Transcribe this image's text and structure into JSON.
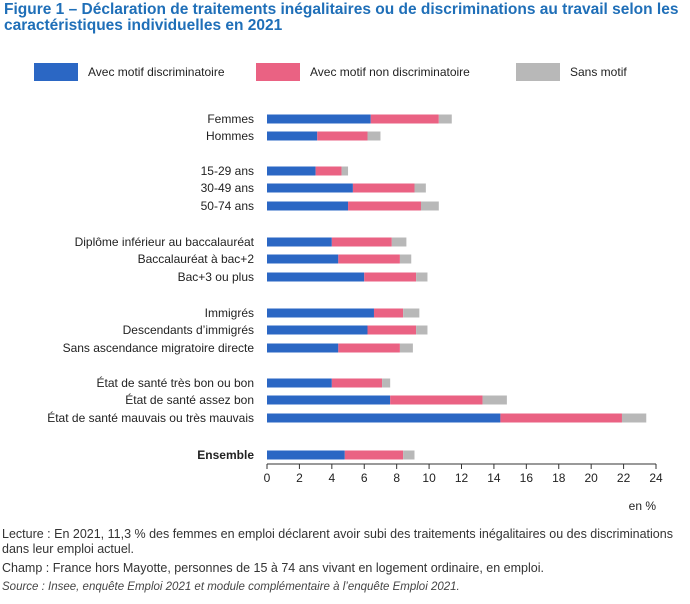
{
  "title": "Figure 1 – Déclaration de traitements inégalitaires ou de discriminations au travail selon les caractéristiques individuelles en 2021",
  "legend": [
    {
      "label": "Avec motif discriminatoire",
      "color": "#2b67c4"
    },
    {
      "label": "Avec motif non discriminatoire",
      "color": "#ea6283"
    },
    {
      "label": "Sans motif",
      "color": "#b8b8b8"
    }
  ],
  "chart_data": {
    "type": "bar",
    "orientation": "horizontal",
    "stacked": true,
    "categories": [
      "Femmes",
      "Hommes",
      "15-29 ans",
      "30-49 ans",
      "50-74 ans",
      "Diplôme inférieur au baccalauréat",
      "Baccalauréat à bac+2",
      "Bac+3 ou plus",
      "Immigrés",
      "Descendants d’immigrés",
      "Sans ascendance migratoire directe",
      "État de santé très bon ou bon",
      "État de santé assez bon",
      "État de santé mauvais ou très mauvais",
      "Ensemble"
    ],
    "bold_categories": [
      "Ensemble"
    ],
    "series": [
      {
        "name": "Avec motif discriminatoire",
        "color": "#2b67c4",
        "values": [
          6.4,
          3.1,
          3.0,
          5.3,
          5.0,
          4.0,
          4.4,
          6.0,
          6.6,
          6.2,
          4.4,
          4.0,
          7.6,
          14.4,
          4.8
        ]
      },
      {
        "name": "Avec motif non discriminatoire",
        "color": "#ea6283",
        "values": [
          4.2,
          3.1,
          1.6,
          3.8,
          4.5,
          3.7,
          3.8,
          3.2,
          1.8,
          3.0,
          3.8,
          3.1,
          5.7,
          7.5,
          3.6
        ]
      },
      {
        "name": "Sans motif",
        "color": "#b8b8b8",
        "values": [
          0.8,
          0.8,
          0.4,
          0.7,
          1.1,
          0.9,
          0.7,
          0.7,
          1.0,
          0.7,
          0.8,
          0.5,
          1.5,
          1.5,
          0.7
        ]
      }
    ],
    "xlim": [
      0,
      24
    ],
    "xticks": [
      "0",
      "2",
      "4",
      "6",
      "8",
      "10",
      "12",
      "14",
      "16",
      "18",
      "20",
      "22",
      "24"
    ],
    "xunit": "en %",
    "grid": false,
    "legend_position": "top"
  },
  "notes": {
    "lecture": "Lecture : En 2021, 11,3 % des femmes en emploi déclarent avoir subi des traitements inégalitaires ou des discriminations dans leur emploi actuel.",
    "champ": "Champ : France hors Mayotte, personnes de 15 à 74 ans vivant en logement ordinaire, en emploi.",
    "source": "Source : Insee, enquête Emploi 2021 et module complémentaire à l’enquête Emploi 2021."
  }
}
